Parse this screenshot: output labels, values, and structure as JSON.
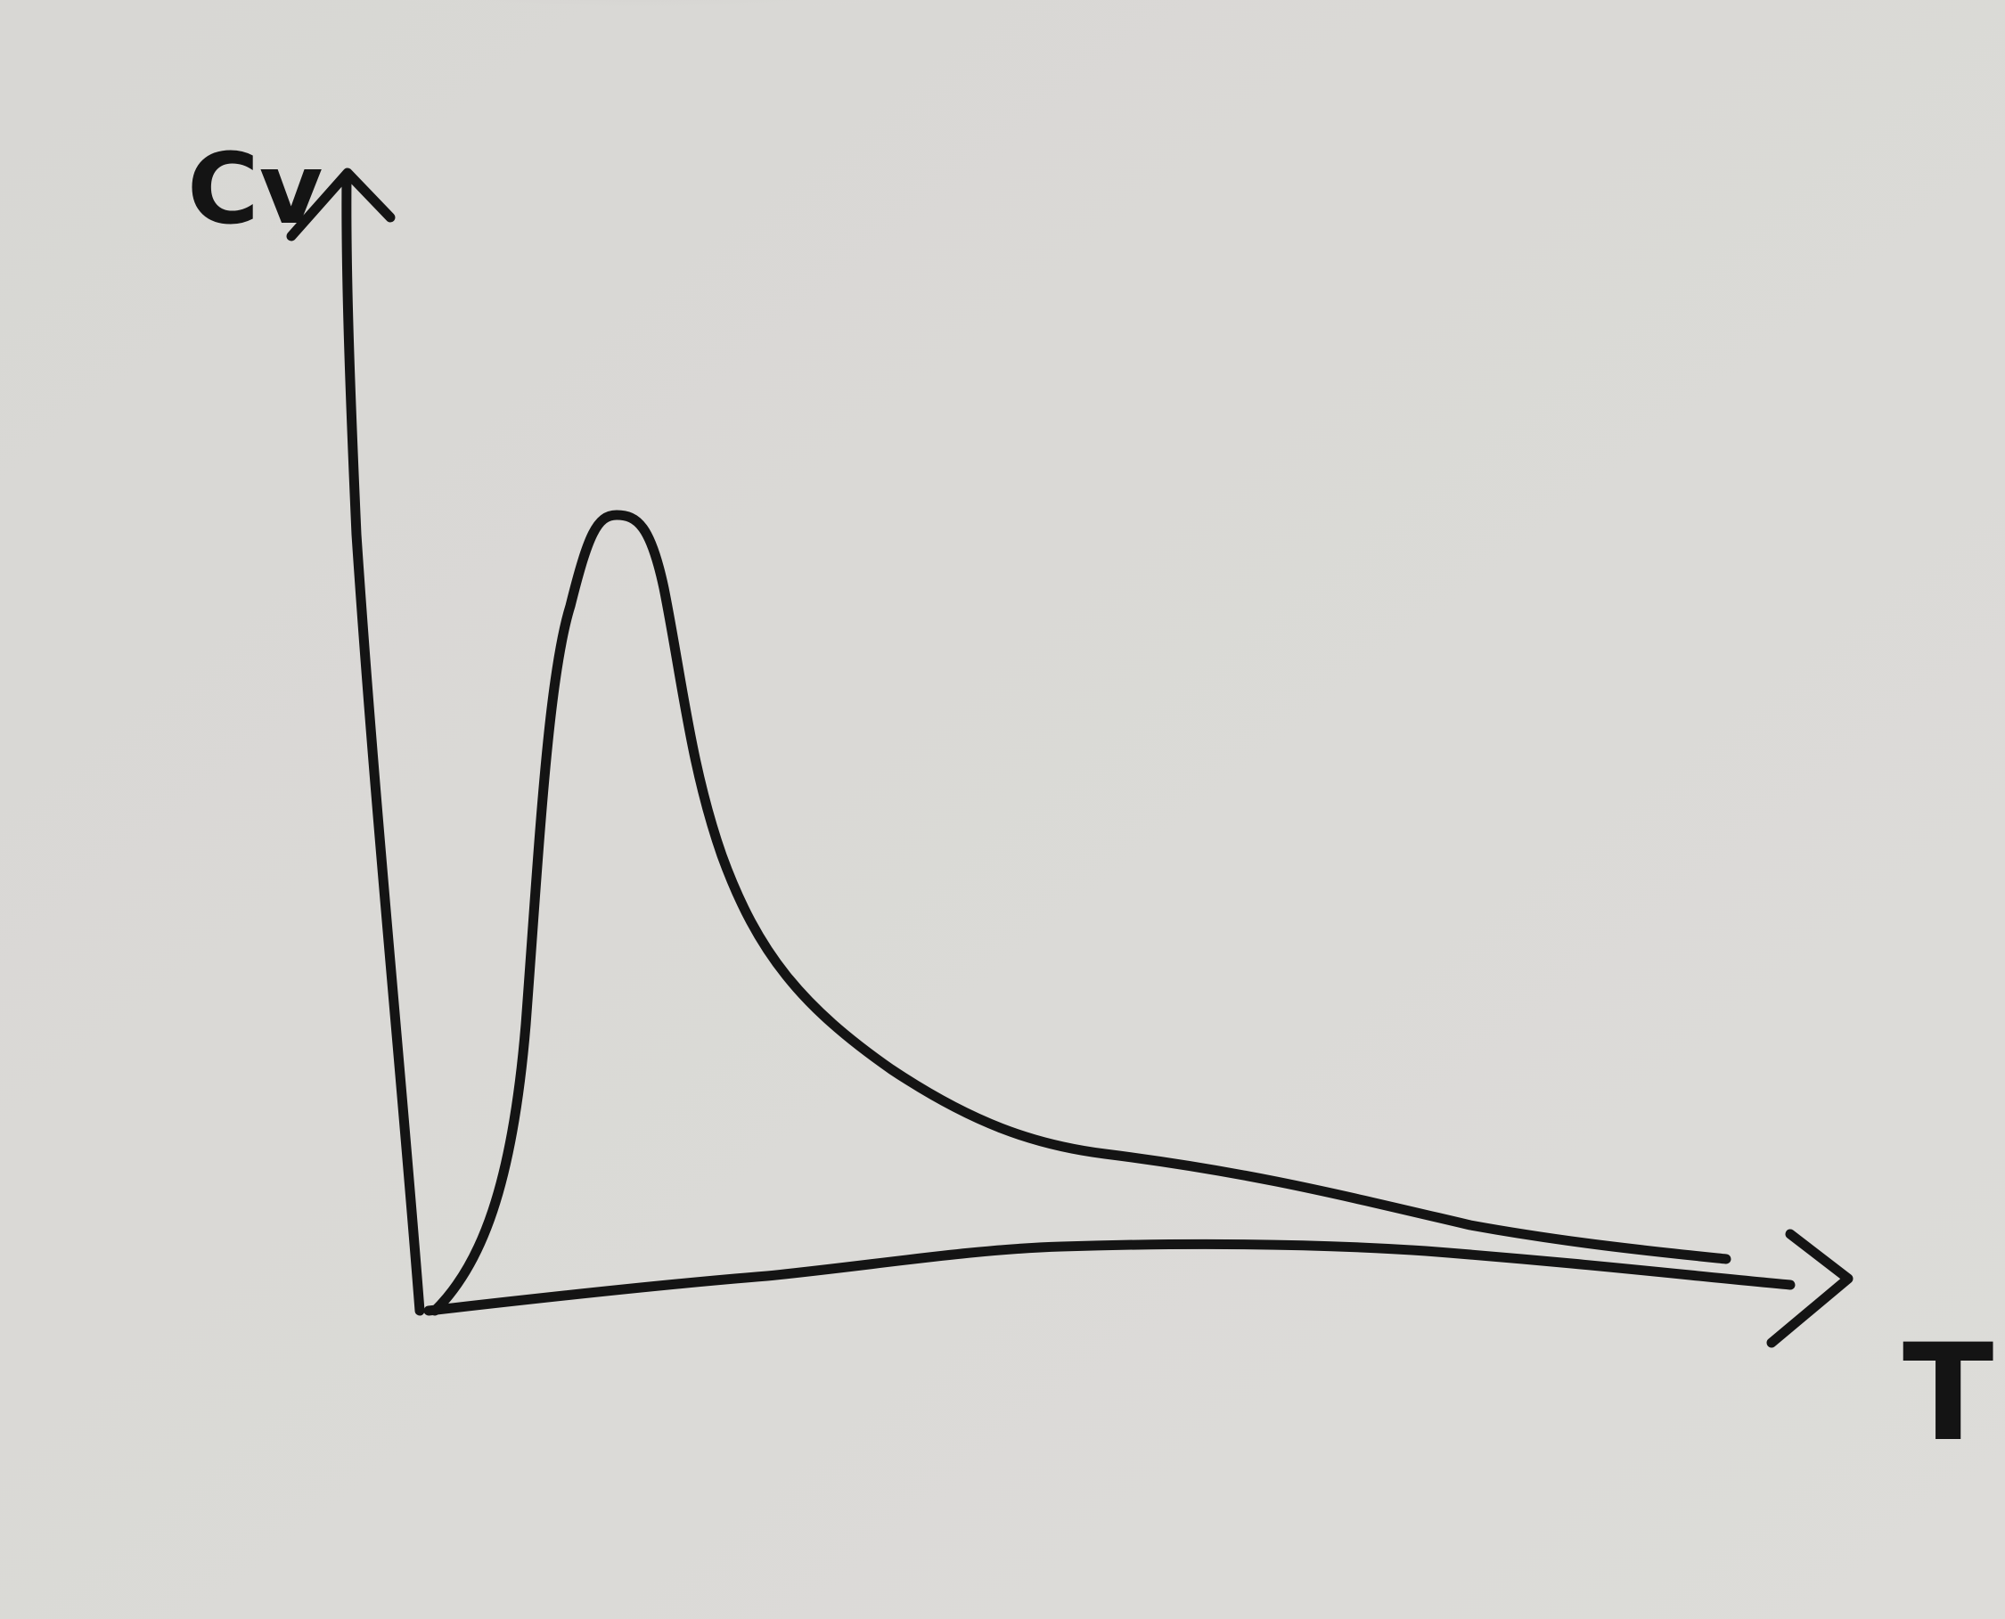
{
  "y_label": "Cv",
  "x_label": "T"
}
